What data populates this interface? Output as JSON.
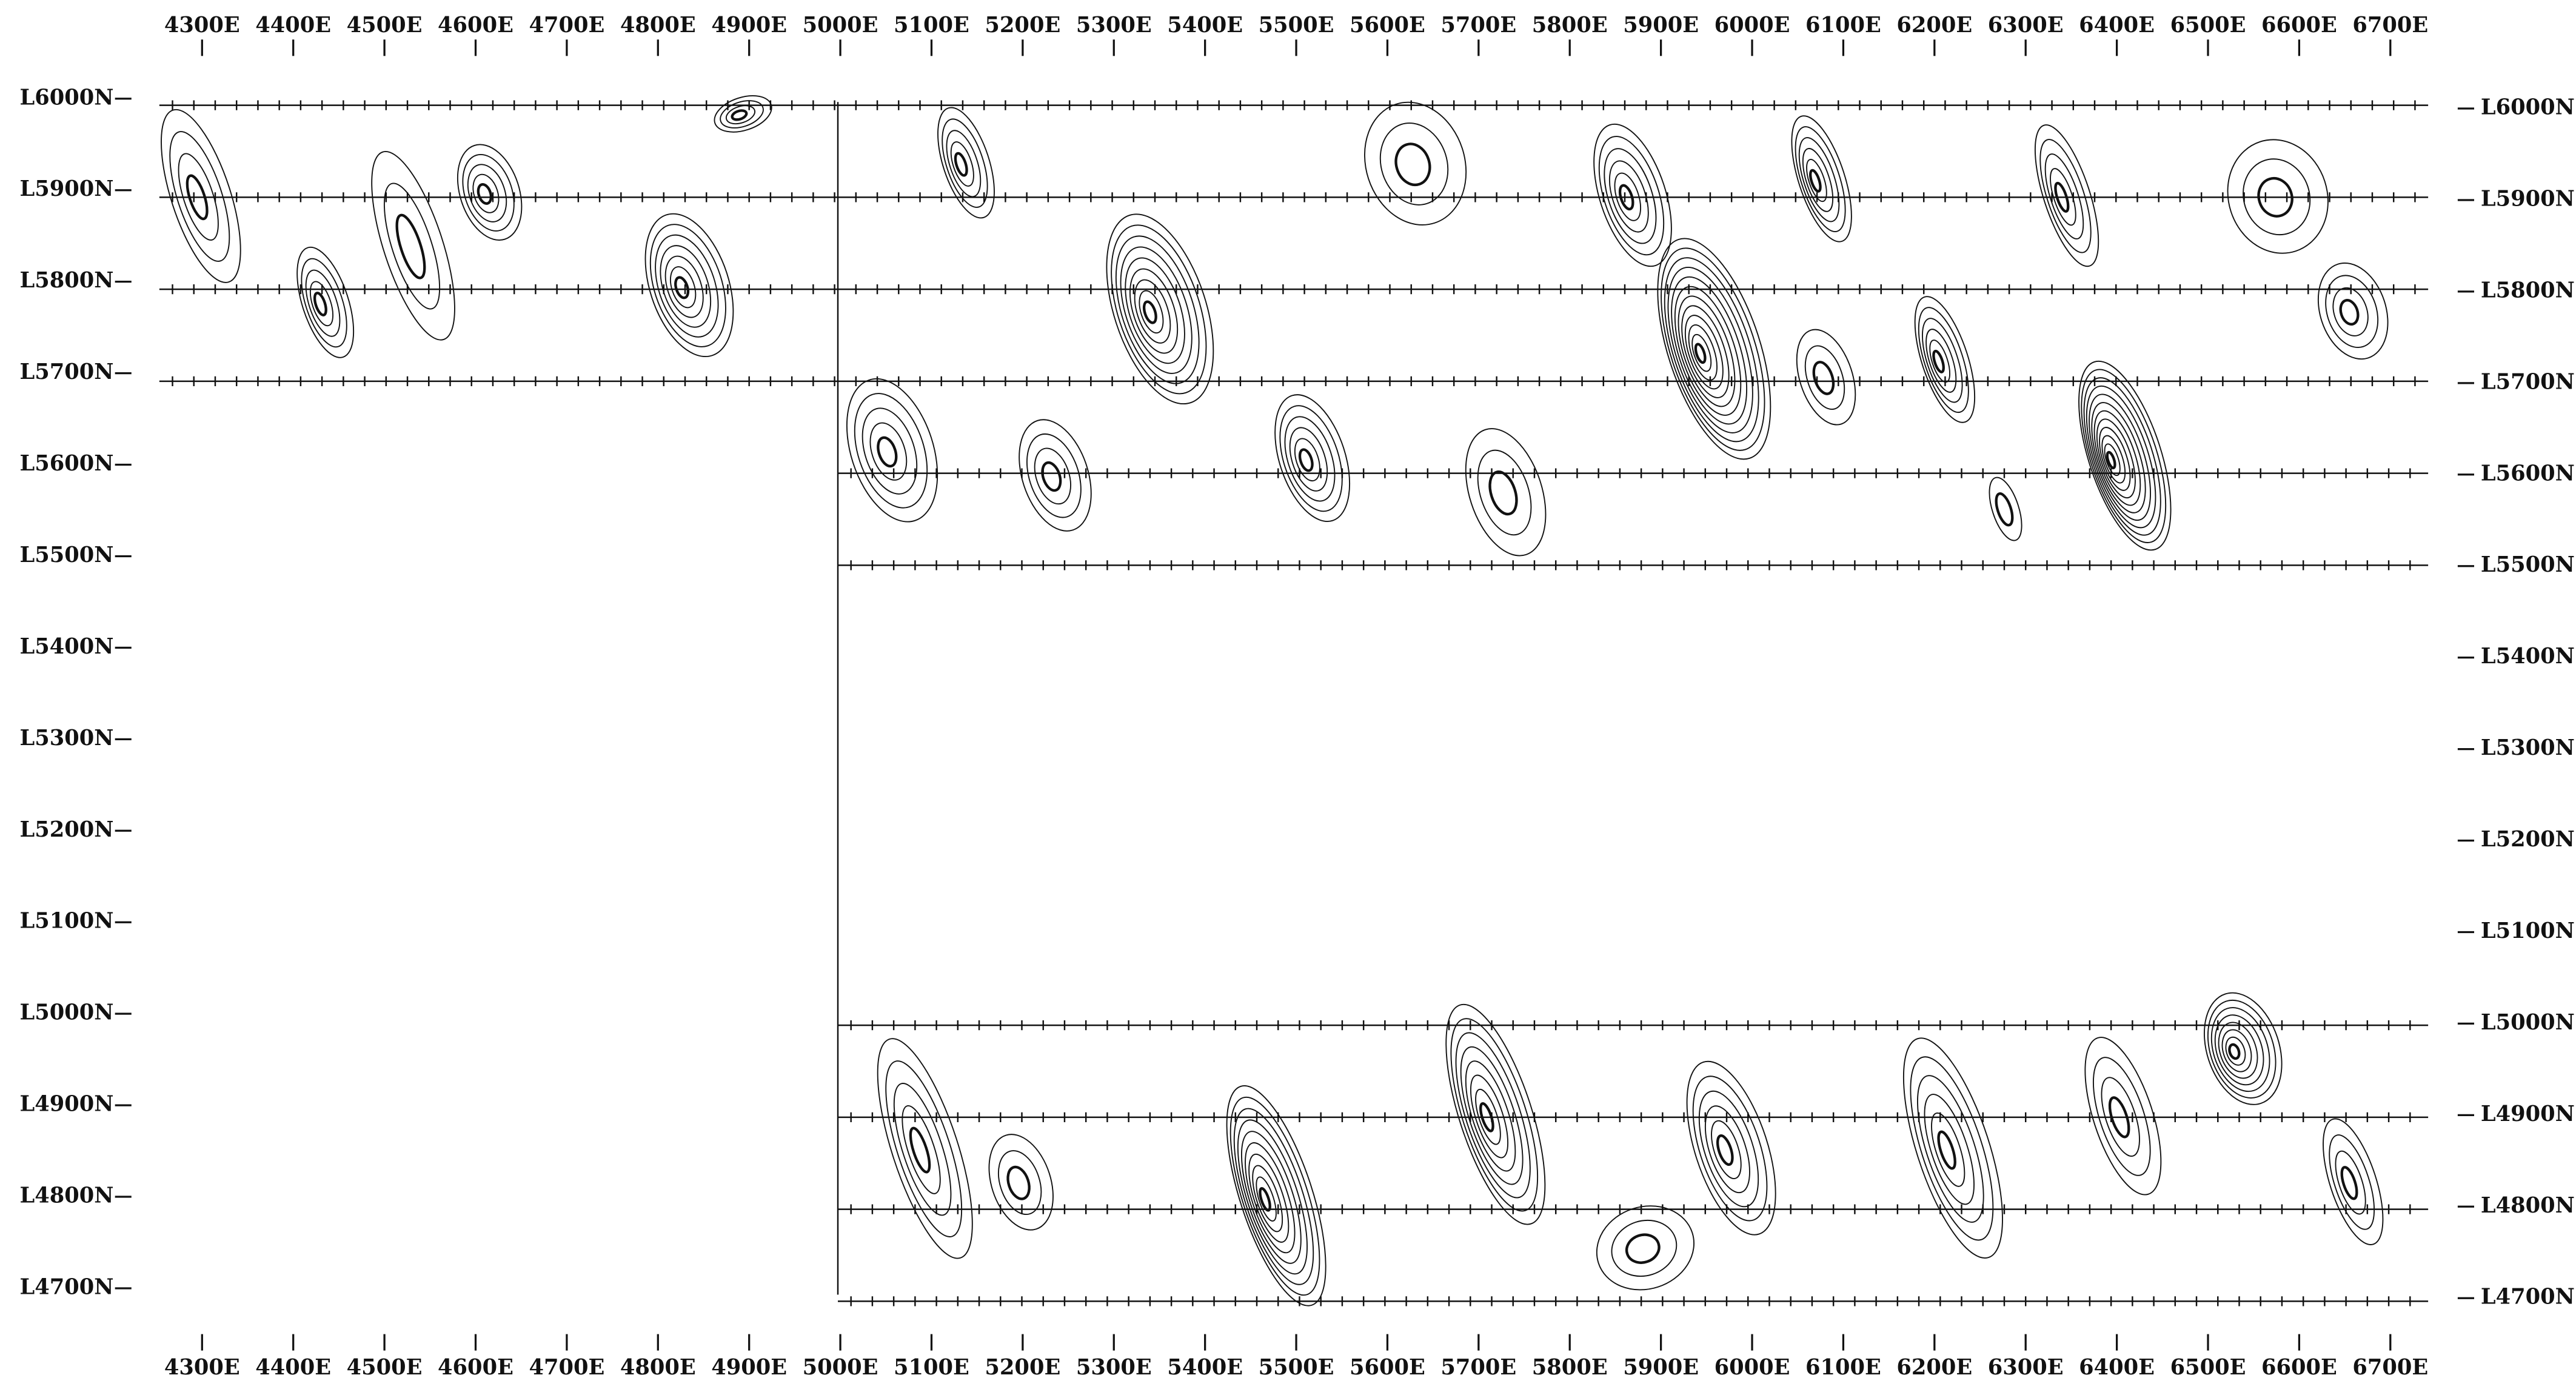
{
  "map": {
    "top_labels": [
      "4300E",
      "4400E",
      "4500E",
      "4600E",
      "4700E",
      "4800E",
      "4900E",
      "5000E",
      "5100E",
      "5200E",
      "5300E",
      "5400E",
      "5500E",
      "5600E",
      "5700E",
      "5800E",
      "5900E",
      "6000E",
      "6100E",
      "6200E",
      "6300E",
      "6400E",
      "6500E",
      "6600E",
      "6700E"
    ],
    "bottom_labels": [
      "4300E",
      "4400E",
      "4500E",
      "4600E",
      "4700E",
      "4800E",
      "4900E",
      "5000E",
      "5100E",
      "5200E",
      "5300E",
      "5400E",
      "5500E",
      "5600E",
      "5700E",
      "5800E",
      "5900E",
      "6000E",
      "6100E",
      "6200E",
      "6300E",
      "6400E",
      "6500E",
      "6600E",
      "6700E"
    ],
    "left_labels": [
      "L6000N",
      "L5900N",
      "L5800N",
      "L5700N",
      "L5600N",
      "L5500N",
      "L5400N",
      "L5300N",
      "L5200N",
      "L5100N",
      "L5000N",
      "L4900N",
      "L4800N",
      "L4700N"
    ],
    "right_labels": [
      "L6000N",
      "L5900N",
      "L5800N",
      "L5700N",
      "L5600N",
      "L5500N",
      "L5400N",
      "L5300N",
      "L5200N",
      "L5100N",
      "L5000N",
      "L4900N",
      "L4800N",
      "L4700N"
    ]
  }
}
